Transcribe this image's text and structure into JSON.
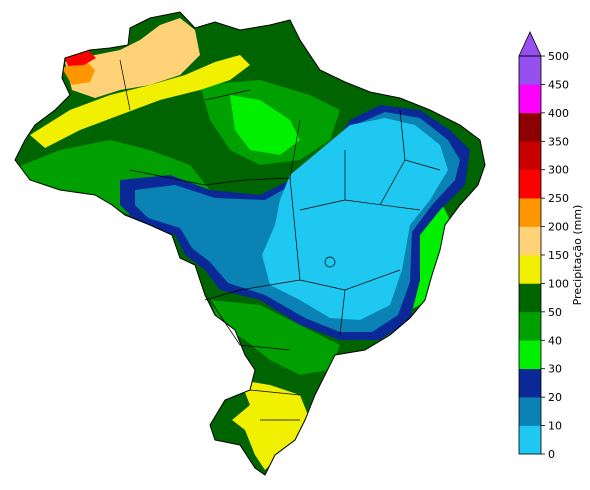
{
  "colorbar": {
    "label": "Precipitação (mm)",
    "ticks": [
      "0",
      "10",
      "20",
      "30",
      "40",
      "50",
      "100",
      "150",
      "200",
      "250",
      "300",
      "350",
      "400",
      "450",
      "500"
    ],
    "colors": [
      "#1ec8f0",
      "#0a82b4",
      "#0a2896",
      "#00f000",
      "#00a000",
      "#006400",
      "#f0f000",
      "#ffd278",
      "#ff9600",
      "#ff0000",
      "#c80000",
      "#8c0000",
      "#ff00ff",
      "#9650f0"
    ],
    "extend_color": "#9650f0"
  },
  "map_colors": {
    "outline": "#000000",
    "c0_10": "#1ec8f0",
    "c10_20": "#0a82b4",
    "c20_30": "#0a2896",
    "c30_40": "#00f000",
    "c40_50": "#00a000",
    "c50_100": "#006400",
    "c100_150": "#f0f000",
    "c150_200": "#ffd278",
    "c200_250": "#ff9600",
    "c250_300": "#ff0000"
  }
}
